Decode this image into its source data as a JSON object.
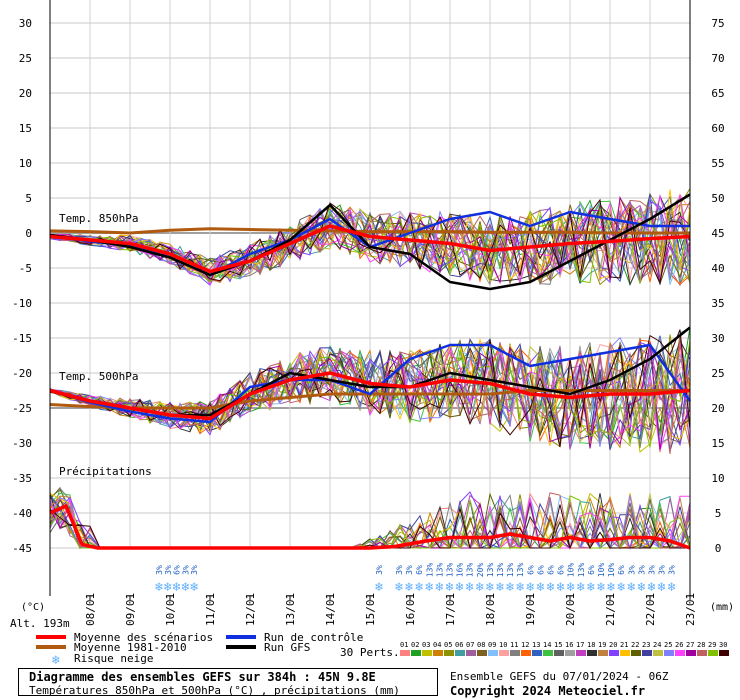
{
  "chart_data": {
    "type": "line",
    "title": "Diagramme des ensembles GEFS sur 384h : 45N 9.8E",
    "subtitle": "Températures 850hPa et 500hPa (°C) , précipitations (mm)",
    "run_info": "Ensemble GEFS du 07/01/2024 - 06Z",
    "copyright": "Copyright 2024 Meteociel.fr",
    "altitude": "Alt. 193m",
    "left_unit": "(°C)",
    "right_unit": "(mm)",
    "left_ticks": [
      "30",
      "25",
      "20",
      "15",
      "10",
      "5",
      "0",
      "-5",
      "-10",
      "-15",
      "-20",
      "-25",
      "-30",
      "-35",
      "-40",
      "-45"
    ],
    "right_ticks": [
      "75",
      "70",
      "65",
      "60",
      "55",
      "50",
      "45",
      "40",
      "35",
      "30",
      "25",
      "20",
      "15",
      "10",
      "5",
      "0"
    ],
    "left_axis_range": [
      -45,
      30
    ],
    "right_axis_range": [
      0,
      75
    ],
    "dates": [
      "08/01",
      "09/01",
      "10/01",
      "11/01",
      "12/01",
      "13/01",
      "14/01",
      "15/01",
      "16/01",
      "17/01",
      "18/01",
      "19/01",
      "20/01",
      "21/01",
      "22/01",
      "23/01"
    ],
    "section_labels": {
      "t850": "Temp. 850hPa",
      "t500": "Temp. 500hPa",
      "precip": "Précipitations"
    },
    "legend": {
      "mean": "Moyenne des scénarios",
      "climo": "Moyenne 1981-2010",
      "snow": "Risque neige",
      "control": "Run de contrôle",
      "gfs": "Run GFS",
      "perts_label": "30 Perts."
    },
    "pert_ids": [
      "01",
      "02",
      "03",
      "04",
      "05",
      "06",
      "07",
      "08",
      "09",
      "10",
      "11",
      "12",
      "13",
      "14",
      "15",
      "16",
      "17",
      "18",
      "19",
      "20",
      "21",
      "22",
      "23",
      "24",
      "25",
      "26",
      "27",
      "28",
      "29",
      "30"
    ],
    "pert_colors": [
      "#ff8080",
      "#20a020",
      "#c0c000",
      "#d08000",
      "#909000",
      "#40a0a0",
      "#a060a0",
      "#806020",
      "#80c0ff",
      "#ffa0a0",
      "#808080",
      "#ff6000",
      "#3060c0",
      "#40c040",
      "#606060",
      "#a0a0a0",
      "#c040c0",
      "#303030",
      "#c08040",
      "#8040ff",
      "#ffc000",
      "#606000",
      "#4040a0",
      "#c0c040",
      "#8080ff",
      "#ff40ff",
      "#a000a0",
      "#c06060",
      "#80c000",
      "#400000"
    ],
    "series_colors": {
      "mean": "#ff0000",
      "climo": "#b05a10",
      "control": "#1030e0",
      "gfs": "#000000",
      "snow": "#60b0ff"
    },
    "snow_pct_group1": [
      "3%",
      "3%",
      "6%",
      "3%",
      "3%"
    ],
    "snow_pct_single": "3%",
    "snow_pct_group2": [
      "3%",
      "3%",
      "6%",
      "13%",
      "13%",
      "13%",
      "16%",
      "13%",
      "20%",
      "13%",
      "13%",
      "13%",
      "13%",
      "6%",
      "6%",
      "6%",
      "6%",
      "10%",
      "13%",
      "6%",
      "10%",
      "10%",
      "6%",
      "3%",
      "3%",
      "3%",
      "3%",
      "3%"
    ],
    "t850_mean": [
      [
        0,
        -0.5
      ],
      [
        1,
        -1
      ],
      [
        2,
        -1.5
      ],
      [
        3,
        -3
      ],
      [
        4,
        -5.5
      ],
      [
        5,
        -4
      ],
      [
        6,
        -1.5
      ],
      [
        7,
        1
      ],
      [
        8,
        -0.5
      ],
      [
        9,
        -1
      ],
      [
        10,
        -1.5
      ],
      [
        11,
        -2.5
      ],
      [
        12,
        -2
      ],
      [
        13,
        -1.5
      ],
      [
        14,
        -1.2
      ],
      [
        15,
        -0.8
      ],
      [
        16,
        -0.5
      ]
    ],
    "t850_climo": [
      [
        0,
        0.3
      ],
      [
        1,
        0.2
      ],
      [
        2,
        0
      ],
      [
        3,
        0.4
      ],
      [
        4,
        0.6
      ],
      [
        5,
        0.5
      ],
      [
        6,
        0.4
      ],
      [
        7,
        0.3
      ],
      [
        8,
        0.2
      ],
      [
        9,
        0.2
      ],
      [
        10,
        0.2
      ],
      [
        11,
        0.1
      ],
      [
        12,
        0.1
      ],
      [
        13,
        0.1
      ],
      [
        14,
        0
      ],
      [
        15,
        0
      ],
      [
        16,
        0
      ]
    ],
    "t850_control": [
      [
        0,
        -0.5
      ],
      [
        1,
        -1.2
      ],
      [
        2,
        -1.8
      ],
      [
        3,
        -3.5
      ],
      [
        4,
        -6
      ],
      [
        5,
        -3
      ],
      [
        6,
        -1
      ],
      [
        7,
        2
      ],
      [
        8,
        -2
      ],
      [
        9,
        0
      ],
      [
        10,
        2
      ],
      [
        11,
        3
      ],
      [
        12,
        1
      ],
      [
        13,
        3
      ],
      [
        14,
        2
      ],
      [
        15,
        1
      ],
      [
        16,
        1
      ]
    ],
    "t850_gfs": [
      [
        0,
        -0.3
      ],
      [
        1,
        -1
      ],
      [
        2,
        -2
      ],
      [
        3,
        -3.5
      ],
      [
        4,
        -6
      ],
      [
        5,
        -4
      ],
      [
        6,
        -1
      ],
      [
        7,
        4
      ],
      [
        8,
        -2
      ],
      [
        9,
        -3
      ],
      [
        10,
        -7
      ],
      [
        11,
        -8
      ],
      [
        12,
        -7
      ],
      [
        13,
        -4
      ],
      [
        14,
        -1
      ],
      [
        15,
        2
      ],
      [
        16,
        5.5
      ]
    ],
    "t500_mean": [
      [
        0,
        -22.5
      ],
      [
        1,
        -24
      ],
      [
        2,
        -25
      ],
      [
        3,
        -26
      ],
      [
        4,
        -26.5
      ],
      [
        5,
        -23
      ],
      [
        6,
        -21
      ],
      [
        7,
        -20
      ],
      [
        8,
        -21.5
      ],
      [
        9,
        -22
      ],
      [
        10,
        -21
      ],
      [
        11,
        -21.5
      ],
      [
        12,
        -23
      ],
      [
        13,
        -23.5
      ],
      [
        14,
        -23
      ],
      [
        15,
        -23
      ],
      [
        16,
        -22.5
      ]
    ],
    "t500_climo": [
      [
        0,
        -24.5
      ],
      [
        1,
        -24.8
      ],
      [
        2,
        -25
      ],
      [
        3,
        -25
      ],
      [
        4,
        -25
      ],
      [
        5,
        -24
      ],
      [
        6,
        -23.5
      ],
      [
        7,
        -23
      ],
      [
        8,
        -23
      ],
      [
        9,
        -23
      ],
      [
        10,
        -23
      ],
      [
        11,
        -23
      ],
      [
        12,
        -22.5
      ],
      [
        13,
        -22.5
      ],
      [
        14,
        -22.5
      ],
      [
        15,
        -22.5
      ],
      [
        16,
        -22.5
      ]
    ],
    "t500_control": [
      [
        0,
        -22.5
      ],
      [
        1,
        -24.2
      ],
      [
        2,
        -25.5
      ],
      [
        3,
        -26.5
      ],
      [
        4,
        -27
      ],
      [
        5,
        -22
      ],
      [
        6,
        -21
      ],
      [
        7,
        -21
      ],
      [
        8,
        -23
      ],
      [
        9,
        -18
      ],
      [
        10,
        -16
      ],
      [
        11,
        -16
      ],
      [
        12,
        -19
      ],
      [
        13,
        -18
      ],
      [
        14,
        -17
      ],
      [
        15,
        -16
      ],
      [
        16,
        -24
      ]
    ],
    "t500_gfs": [
      [
        0,
        -22.5
      ],
      [
        1,
        -24
      ],
      [
        2,
        -25
      ],
      [
        3,
        -26
      ],
      [
        4,
        -26
      ],
      [
        5,
        -23
      ],
      [
        6,
        -20
      ],
      [
        7,
        -21
      ],
      [
        8,
        -22
      ],
      [
        9,
        -22
      ],
      [
        10,
        -20
      ],
      [
        11,
        -21
      ],
      [
        12,
        -22
      ],
      [
        13,
        -23
      ],
      [
        14,
        -21
      ],
      [
        15,
        -18
      ],
      [
        16,
        -13.5
      ]
    ],
    "precip_mean": [
      [
        0,
        5
      ],
      [
        0.4,
        6
      ],
      [
        0.8,
        0.5
      ],
      [
        1.2,
        0
      ],
      [
        4,
        0
      ],
      [
        6,
        0
      ],
      [
        8,
        0
      ],
      [
        8.6,
        0.2
      ],
      [
        9.4,
        1
      ],
      [
        10,
        1.5
      ],
      [
        11,
        1.5
      ],
      [
        11.5,
        2
      ],
      [
        12,
        1.5
      ],
      [
        12.5,
        1
      ],
      [
        13,
        1.5
      ],
      [
        13.5,
        1
      ],
      [
        14,
        1.2
      ],
      [
        14.5,
        1.5
      ],
      [
        15,
        1.5
      ],
      [
        15.5,
        1
      ],
      [
        16,
        0
      ]
    ]
  }
}
